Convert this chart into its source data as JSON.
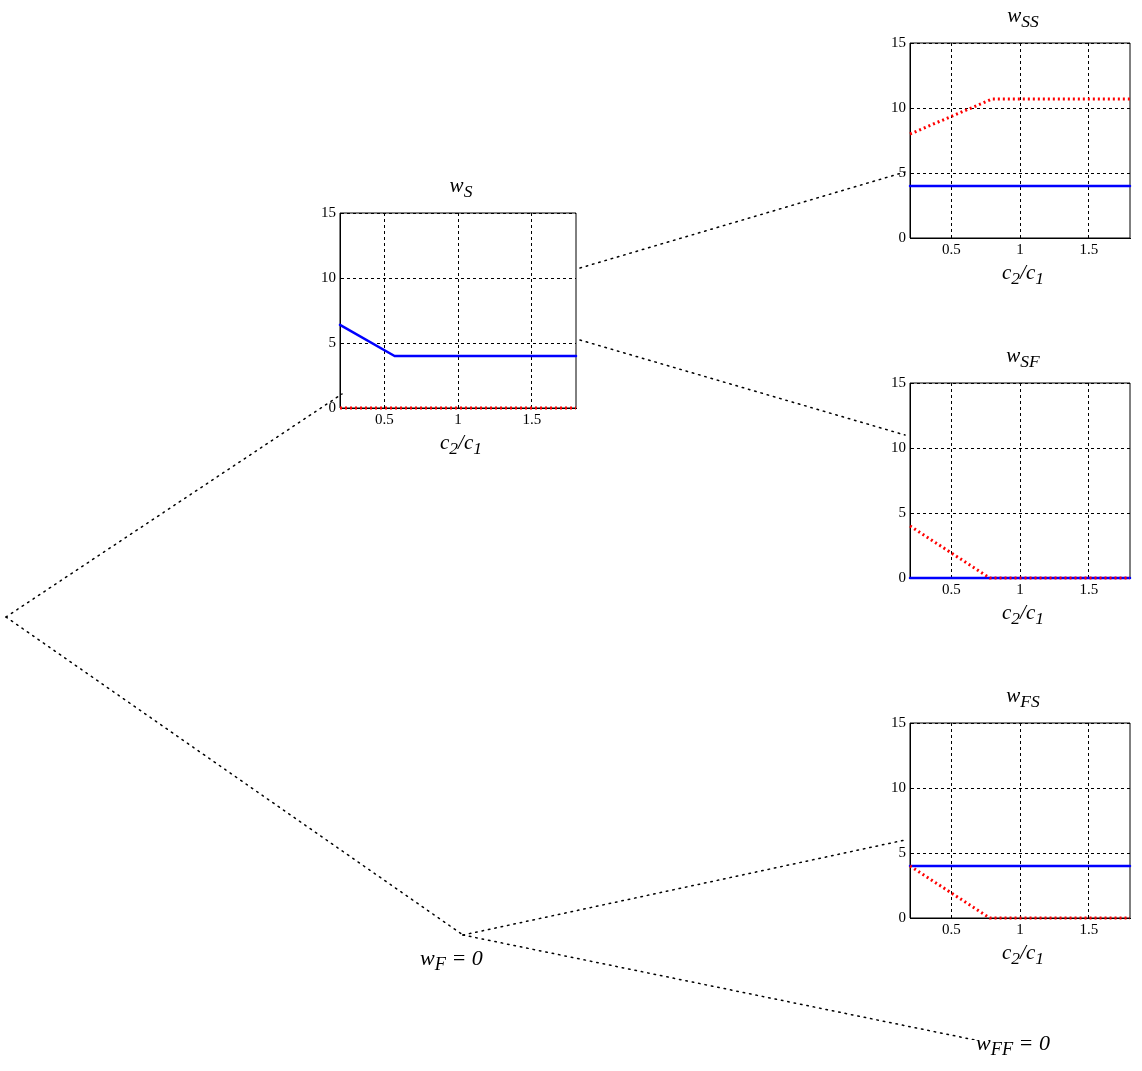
{
  "chart_data": [
    {
      "type": "line",
      "title": "w$_{S}$",
      "xlabel": "c$_{2}$/c$_{1}$",
      "xlim": [
        0.2,
        1.8
      ],
      "xticks": [
        0.5,
        1,
        1.5
      ],
      "ylim": [
        0,
        15
      ],
      "yticks": [
        0,
        5,
        10,
        15
      ],
      "grid": true,
      "legend": false,
      "marker": "none",
      "series": [
        {
          "color": "#0000ff",
          "line_style": "solid",
          "x": [
            0.2,
            0.57,
            1.8
          ],
          "values": [
            6.4,
            4,
            4
          ]
        },
        {
          "color": "#ff0000",
          "line_style": "dotted",
          "x": [
            0.2,
            1.8
          ],
          "values": [
            0,
            0
          ]
        }
      ]
    },
    {
      "type": "line",
      "title": "w$_{SS}$",
      "xlabel": "c$_{2}$/c$_{1}$",
      "xlim": [
        0.2,
        1.8
      ],
      "xticks": [
        0.5,
        1,
        1.5
      ],
      "ylim": [
        0,
        15
      ],
      "yticks": [
        0,
        5,
        10,
        15
      ],
      "grid": true,
      "legend": false,
      "marker": "none",
      "series": [
        {
          "color": "#0000ff",
          "line_style": "solid",
          "x": [
            0.2,
            1.8
          ],
          "values": [
            4,
            4
          ]
        },
        {
          "color": "#ff0000",
          "line_style": "dotted",
          "x": [
            0.2,
            0.8,
            1.8
          ],
          "values": [
            8,
            10.7,
            10.7
          ]
        }
      ]
    },
    {
      "type": "line",
      "title": "w$_{SF}$",
      "xlabel": "c$_{2}$/c$_{1}$",
      "xlim": [
        0.2,
        1.8
      ],
      "xticks": [
        0.5,
        1,
        1.5
      ],
      "ylim": [
        0,
        15
      ],
      "yticks": [
        0,
        5,
        10,
        15
      ],
      "grid": true,
      "legend": false,
      "marker": "none",
      "series": [
        {
          "color": "#0000ff",
          "line_style": "solid",
          "x": [
            0.2,
            1.8
          ],
          "values": [
            0,
            0
          ]
        },
        {
          "color": "#ff0000",
          "line_style": "dotted",
          "x": [
            0.2,
            0.78,
            1.8
          ],
          "values": [
            4,
            0,
            0
          ]
        }
      ]
    },
    {
      "type": "line",
      "title": "w$_{FS}$",
      "xlabel": "c$_{2}$/c$_{1}$",
      "xlim": [
        0.2,
        1.8
      ],
      "xticks": [
        0.5,
        1,
        1.5
      ],
      "ylim": [
        0,
        15
      ],
      "yticks": [
        0,
        5,
        10,
        15
      ],
      "grid": true,
      "legend": false,
      "marker": "none",
      "series": [
        {
          "color": "#0000ff",
          "line_style": "solid",
          "x": [
            0.2,
            1.8
          ],
          "values": [
            4,
            4
          ]
        },
        {
          "color": "#ff0000",
          "line_style": "dotted",
          "x": [
            0.2,
            0.78,
            1.8
          ],
          "values": [
            4,
            0,
            0
          ]
        }
      ]
    },
    {
      "type": "other",
      "annotations": [
        "w$_{F}$ = 0",
        "w$_{FF}$ = 0"
      ]
    }
  ]
}
